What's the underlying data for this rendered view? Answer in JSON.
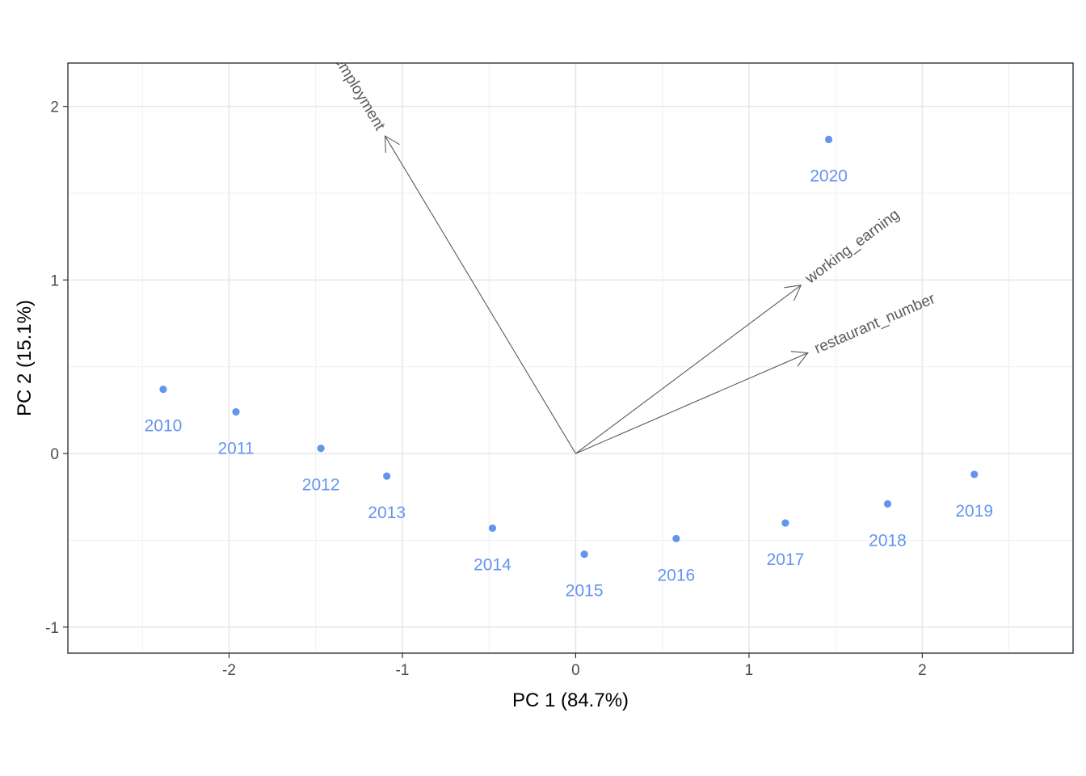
{
  "chart_data": {
    "type": "scatter",
    "title": "",
    "xlabel": "PC 1 (84.7%)",
    "ylabel": "PC 2 (15.1%)",
    "xlim": [
      -2.93,
      2.87
    ],
    "ylim": [
      -1.15,
      2.25
    ],
    "x_ticks": [
      -2,
      -1,
      0,
      1,
      2
    ],
    "y_ticks": [
      -1,
      0,
      1,
      2
    ],
    "x_tick_labels": [
      "-2",
      "-1",
      "0",
      "1",
      "2"
    ],
    "y_tick_labels": [
      "-1",
      "0",
      "1",
      "2"
    ],
    "grid": true,
    "point_color": "#6495ED",
    "arrow_color": "#5a5a5a",
    "points": [
      {
        "label": "2010",
        "x": -2.38,
        "y": 0.37
      },
      {
        "label": "2011",
        "x": -1.96,
        "y": 0.24
      },
      {
        "label": "2012",
        "x": -1.47,
        "y": 0.03
      },
      {
        "label": "2013",
        "x": -1.09,
        "y": -0.13
      },
      {
        "label": "2014",
        "x": -0.48,
        "y": -0.43
      },
      {
        "label": "2015",
        "x": 0.05,
        "y": -0.58
      },
      {
        "label": "2016",
        "x": 0.58,
        "y": -0.49
      },
      {
        "label": "2017",
        "x": 1.21,
        "y": -0.4
      },
      {
        "label": "2018",
        "x": 1.8,
        "y": -0.29
      },
      {
        "label": "2019",
        "x": 2.3,
        "y": -0.12
      },
      {
        "label": "2020",
        "x": 1.46,
        "y": 1.81
      }
    ],
    "loadings": [
      {
        "name": "working_earning",
        "x": 1.3,
        "y": 0.97
      },
      {
        "name": "restaurant_number",
        "x": 1.34,
        "y": 0.58
      },
      {
        "name": "employment",
        "x": -1.1,
        "y": 1.83
      }
    ]
  }
}
